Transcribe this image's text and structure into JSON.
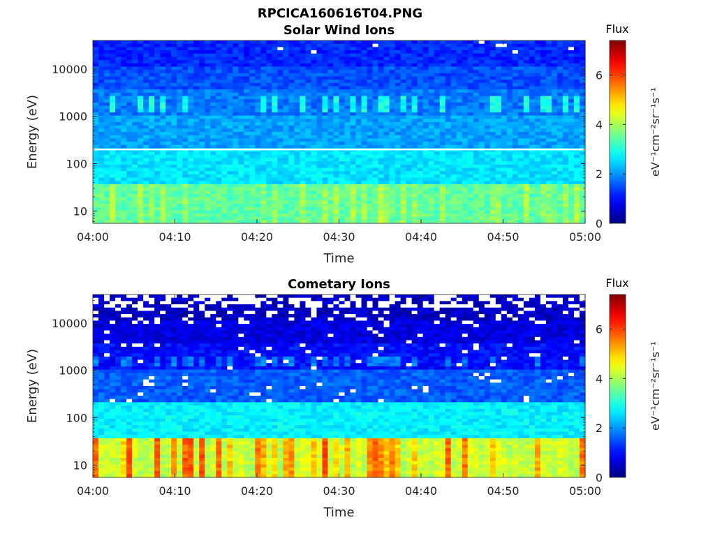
{
  "figure": {
    "title": "RPCICA160616T04.PNG"
  },
  "colormap": "jet",
  "chart_data": [
    {
      "type": "heatmap",
      "title": "Solar Wind Ions",
      "xlabel": "Time",
      "ylabel": "Energy (eV)",
      "y_scale": "log",
      "ylim": [
        5.5,
        40000
      ],
      "x_range": [
        "04:00",
        "05:00"
      ],
      "x_ticks": [
        "04:00",
        "04:10",
        "04:20",
        "04:30",
        "04:40",
        "04:50",
        "05:00"
      ],
      "y_ticks": [
        {
          "value": 10,
          "label": "10"
        },
        {
          "value": 100,
          "label": "100"
        },
        {
          "value": 1000,
          "label": "1000"
        },
        {
          "value": 10000,
          "label": "10000"
        }
      ],
      "white_line_energy": 200,
      "bands": [
        {
          "e_min": 5.5,
          "e_max": 40,
          "flux": 3.4
        },
        {
          "e_min": 40,
          "e_max": 200,
          "flux": 2.6
        },
        {
          "e_min": 200,
          "e_max": 1000,
          "flux": 2.1
        },
        {
          "e_min": 1000,
          "e_max": 4000,
          "flux": 1.8
        },
        {
          "e_min": 4000,
          "e_max": 12000,
          "flux": 1.5
        },
        {
          "e_min": 12000,
          "e_max": 40000,
          "flux": 1.2
        }
      ],
      "colorbar": {
        "title": "Flux",
        "label": "eV⁻¹cm⁻²sr⁻¹s⁻¹",
        "range": [
          0,
          7.4
        ],
        "ticks": [
          {
            "value": 0,
            "label": "0"
          },
          {
            "value": 2,
            "label": "2"
          },
          {
            "value": 4,
            "label": "4"
          },
          {
            "value": 6,
            "label": "6"
          }
        ]
      }
    },
    {
      "type": "heatmap",
      "title": "Cometary Ions",
      "xlabel": "Time",
      "ylabel": "Energy (eV)",
      "y_scale": "log",
      "ylim": [
        5.5,
        40000
      ],
      "x_range": [
        "04:00",
        "05:00"
      ],
      "x_ticks": [
        "04:00",
        "04:10",
        "04:20",
        "04:30",
        "04:40",
        "04:50",
        "05:00"
      ],
      "y_ticks": [
        {
          "value": 10,
          "label": "10"
        },
        {
          "value": 100,
          "label": "100"
        },
        {
          "value": 1000,
          "label": "1000"
        },
        {
          "value": 10000,
          "label": "10000"
        }
      ],
      "bands": [
        {
          "e_min": 5.5,
          "e_max": 40,
          "flux": 4.0
        },
        {
          "e_min": 40,
          "e_max": 200,
          "flux": 2.7
        },
        {
          "e_min": 200,
          "e_max": 1000,
          "flux": 1.6
        },
        {
          "e_min": 1000,
          "e_max": 4000,
          "flux": 1.0
        },
        {
          "e_min": 4000,
          "e_max": 12000,
          "flux": 0.7
        },
        {
          "e_min": 12000,
          "e_max": 40000,
          "flux": 0.5
        }
      ],
      "colorbar": {
        "title": "Flux",
        "label": "eV⁻¹cm⁻²sr⁻¹s⁻¹",
        "range": [
          0,
          7.4
        ],
        "ticks": [
          {
            "value": 0,
            "label": "0"
          },
          {
            "value": 2,
            "label": "2"
          },
          {
            "value": 4,
            "label": "4"
          },
          {
            "value": 6,
            "label": "6"
          }
        ]
      }
    }
  ]
}
